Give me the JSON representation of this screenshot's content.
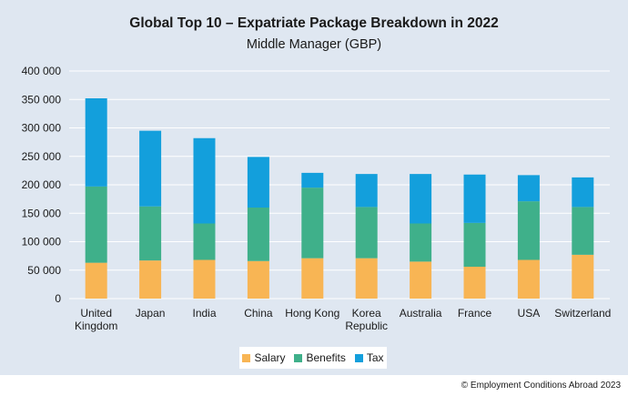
{
  "chart_data": {
    "type": "bar",
    "stacked": true,
    "title": "Global Top 10 – Expatriate Package Breakdown in 2022",
    "subtitle": "Middle Manager (GBP)",
    "categories": [
      "United Kingdom",
      "Japan",
      "India",
      "China",
      "Hong Kong",
      "Korea Republic",
      "Australia",
      "France",
      "USA",
      "Switzerland"
    ],
    "category_lines": [
      [
        "United",
        "Kingdom"
      ],
      [
        "Japan"
      ],
      [
        "India"
      ],
      [
        "China"
      ],
      [
        "Hong Kong"
      ],
      [
        "Korea",
        "Republic"
      ],
      [
        "Australia"
      ],
      [
        "France"
      ],
      [
        "USA"
      ],
      [
        "Switzerland"
      ]
    ],
    "series": [
      {
        "name": "Salary",
        "color": "#f8b554",
        "values": [
          63000,
          67000,
          68000,
          66000,
          71000,
          71000,
          65000,
          56000,
          68000,
          77000
        ]
      },
      {
        "name": "Benefits",
        "color": "#3fb08a",
        "values": [
          134000,
          95000,
          64000,
          94000,
          124000,
          90000,
          67000,
          77000,
          103000,
          84000
        ]
      },
      {
        "name": "Tax",
        "color": "#139fdc",
        "values": [
          155000,
          133000,
          150000,
          89000,
          26000,
          58000,
          87000,
          85000,
          46000,
          52000
        ]
      }
    ],
    "ylim": [
      0,
      400000
    ],
    "yticks": [
      0,
      50000,
      100000,
      150000,
      200000,
      250000,
      300000,
      350000,
      400000
    ],
    "ytick_labels": [
      "0",
      "50 000",
      "100 000",
      "150 000",
      "200 000",
      "250 000",
      "300 000",
      "350 000",
      "400 000"
    ],
    "grid": true,
    "legend_position": "bottom-center"
  },
  "footer": {
    "copyright": "© Employment Conditions Abroad 2023"
  }
}
